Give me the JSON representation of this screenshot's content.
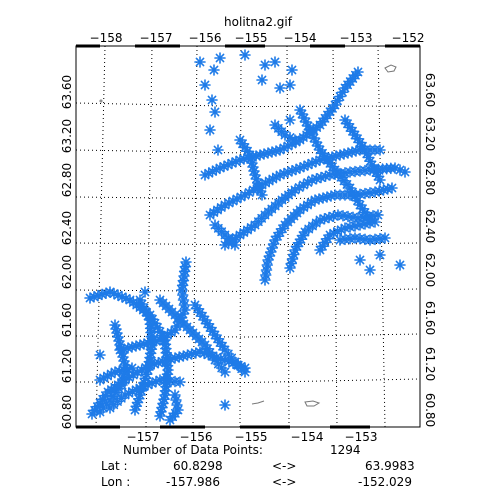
{
  "title": "holitna2.gif",
  "lon_ticks_top": [
    "−158",
    "−157",
    "−156",
    "−155",
    "−154",
    "−153",
    "−152"
  ],
  "lon_ticks_bottom": [
    "−157",
    "−156",
    "−155",
    "−154",
    "−153"
  ],
  "lat_ticks_left": [
    "60.80",
    "61.20",
    "61.60",
    "62.00",
    "62.40",
    "62.80",
    "63.20",
    "63.60"
  ],
  "lat_ticks_right": [
    "60.80",
    "61.20",
    "61.60",
    "62.00",
    "62.40",
    "62.80",
    "63.20",
    "63.60"
  ],
  "stats": {
    "count_label": "Number of Data Points:",
    "count_value": "1294",
    "lat_label": "Lat :",
    "lat_min": "60.8298",
    "lat_arrow": "<->",
    "lat_max": "63.9983",
    "lon_label": "Lon :",
    "lon_min": "-157.986",
    "lon_arrow": "<->",
    "lon_max": "-152.029"
  },
  "colors": {
    "marker": "#1e7be8",
    "grid": "#000000",
    "frame": "#000000",
    "lake": "#777777"
  }
}
